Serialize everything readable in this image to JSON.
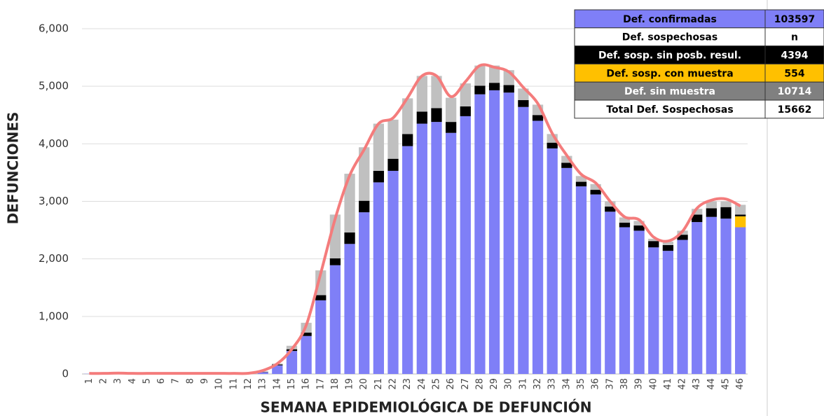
{
  "chart_data": {
    "type": "bar",
    "stacked": true,
    "y_label": "DEFUNCIONES",
    "x_label": "SEMANA EPIDEMIOLÓGICA DE DEFUNCIÓN",
    "categories": [
      1,
      2,
      3,
      4,
      5,
      6,
      7,
      8,
      9,
      10,
      11,
      12,
      13,
      14,
      15,
      16,
      17,
      18,
      19,
      20,
      21,
      22,
      23,
      24,
      25,
      26,
      27,
      28,
      29,
      30,
      31,
      32,
      33,
      34,
      35,
      36,
      37,
      38,
      39,
      40,
      41,
      42,
      43,
      44,
      45,
      46
    ],
    "ylim": [
      0,
      6000
    ],
    "yticks": [
      0,
      {
        "value": 1000,
        "label": "1,000"
      },
      {
        "value": 2000,
        "label": "2,000"
      },
      {
        "value": 3000,
        "label": "3,000"
      },
      {
        "value": 4000,
        "label": "4,000"
      },
      {
        "value": 5000,
        "label": "5,000"
      },
      {
        "value": 6000,
        "label": "6,000"
      }
    ],
    "grid": true,
    "series": [
      {
        "color": "#7f7ff7",
        "values": [
          3,
          2,
          5,
          3,
          2,
          3,
          2,
          3,
          2,
          2,
          3,
          5,
          30,
          150,
          400,
          660,
          1280,
          1890,
          2260,
          2810,
          3330,
          3530,
          3960,
          4350,
          4380,
          4190,
          4480,
          4860,
          4930,
          4890,
          4640,
          4400,
          3920,
          3580,
          3260,
          3120,
          2820,
          2550,
          2490,
          2200,
          2140,
          2330,
          2640,
          2730,
          2700,
          2550
        ]
      },
      {
        "color": "#ffc000",
        "values": [
          0,
          0,
          0,
          0,
          0,
          0,
          0,
          0,
          0,
          0,
          0,
          0,
          0,
          0,
          0,
          0,
          0,
          0,
          0,
          0,
          0,
          0,
          0,
          0,
          0,
          0,
          0,
          0,
          0,
          0,
          0,
          0,
          0,
          0,
          0,
          0,
          0,
          0,
          0,
          0,
          0,
          0,
          0,
          0,
          0,
          190
        ]
      },
      {
        "color": "#000000",
        "values": [
          0,
          0,
          0,
          0,
          0,
          0,
          0,
          0,
          0,
          0,
          0,
          0,
          5,
          15,
          30,
          60,
          90,
          120,
          200,
          200,
          200,
          210,
          210,
          210,
          240,
          190,
          170,
          150,
          130,
          130,
          120,
          100,
          100,
          90,
          80,
          80,
          90,
          80,
          90,
          110,
          100,
          90,
          130,
          150,
          200,
          30
        ]
      },
      {
        "color": "#c0c0c0",
        "values": [
          0,
          0,
          0,
          0,
          0,
          0,
          0,
          0,
          0,
          0,
          0,
          0,
          10,
          15,
          60,
          170,
          430,
          760,
          1020,
          930,
          820,
          680,
          620,
          620,
          560,
          420,
          400,
          350,
          300,
          260,
          200,
          180,
          150,
          120,
          100,
          100,
          90,
          90,
          80,
          40,
          60,
          70,
          100,
          120,
          100,
          170
        ]
      }
    ],
    "line": {
      "color": "#f47c7c",
      "values": [
        10,
        10,
        15,
        10,
        10,
        10,
        10,
        10,
        10,
        10,
        10,
        12,
        60,
        180,
        430,
        850,
        1750,
        2700,
        3450,
        3900,
        4350,
        4450,
        4800,
        5180,
        5180,
        4820,
        5080,
        5360,
        5330,
        5250,
        4980,
        4700,
        4180,
        3800,
        3470,
        3320,
        3000,
        2730,
        2680,
        2380,
        2310,
        2480,
        2880,
        3020,
        3040,
        2920
      ]
    },
    "table": [
      {
        "label": "Def. confirmadas",
        "value": 103597,
        "color": "#7f7ff7"
      },
      {
        "label": "Def. sospechosas",
        "value": "n",
        "color": "#ffffff"
      },
      {
        "label": "Def. sosp. sin posb. resul.",
        "value": 4394,
        "color": "#000000"
      },
      {
        "label": "Def. sosp. con  muestra",
        "value": 554,
        "color": "#ffc000"
      },
      {
        "label": "Def. sin muestra",
        "value": 10714,
        "color": "#808080"
      },
      {
        "label": "Total Def. Sospechosas",
        "value": 15662,
        "color": "#ffffff"
      }
    ]
  }
}
